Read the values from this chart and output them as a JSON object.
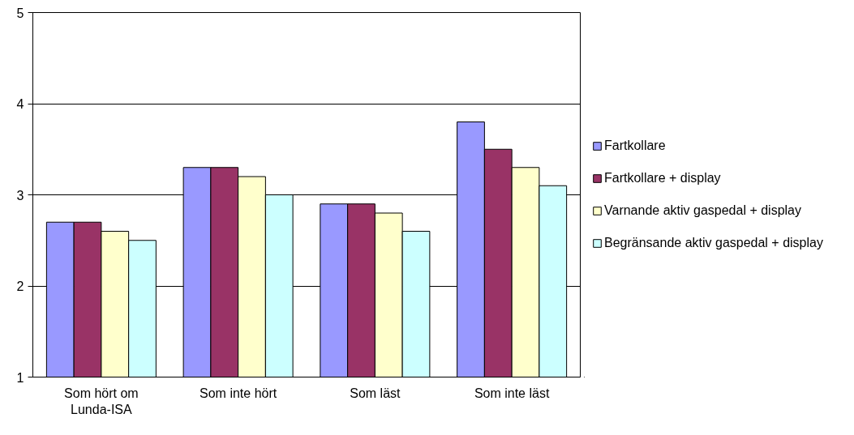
{
  "chart_data": {
    "type": "bar",
    "categories": [
      "Som hört om Lunda-ISA",
      "Som inte hört",
      "Som läst",
      "Som inte läst"
    ],
    "series": [
      {
        "name": "Fartkollare",
        "color": "#9999ff",
        "values": [
          2.7,
          3.3,
          2.9,
          3.8
        ]
      },
      {
        "name": "Fartkollare + display",
        "color": "#993366",
        "values": [
          2.7,
          3.3,
          2.9,
          3.5
        ]
      },
      {
        "name": "Varnande aktiv gaspedal + display",
        "color": "#ffffcc",
        "values": [
          2.6,
          3.2,
          2.8,
          3.3
        ]
      },
      {
        "name": "Begränsande aktiv gaspedal + display",
        "color": "#ccffff",
        "values": [
          2.5,
          3.0,
          2.6,
          3.1
        ]
      }
    ],
    "ylim": [
      1,
      5
    ],
    "yticks": [
      1,
      2,
      3,
      4,
      5
    ],
    "grid": "y",
    "legend": "right"
  }
}
